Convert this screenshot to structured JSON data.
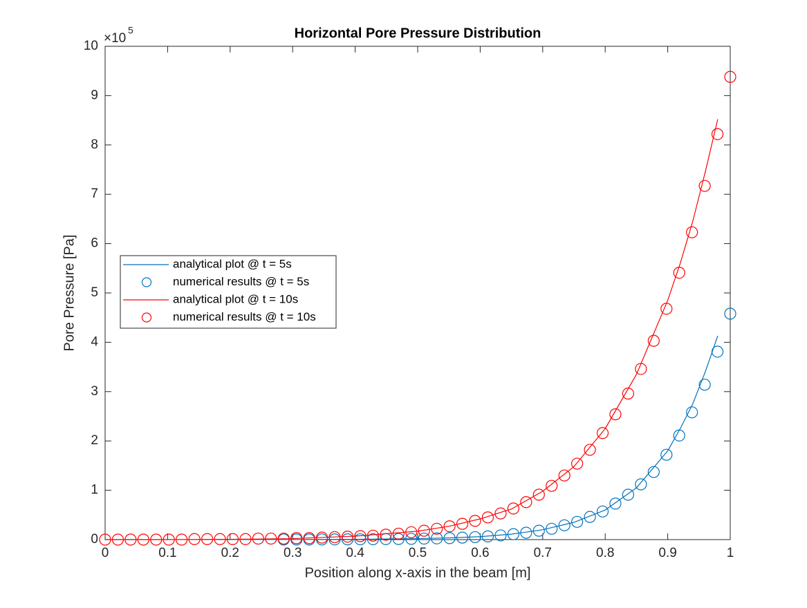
{
  "chart_data": {
    "type": "line",
    "title": "Horizontal Pore Pressure Distribution",
    "xlabel": "Position along x-axis in the beam [m]",
    "ylabel": "Pore Pressure [Pa]",
    "y_multiplier_label": "×10",
    "y_exponent": 5,
    "xlim": [
      0,
      1
    ],
    "ylim": [
      0,
      10
    ],
    "xticks": [
      0,
      0.1,
      0.2,
      0.3,
      0.4,
      0.5,
      0.6,
      0.7,
      0.8,
      0.9,
      1
    ],
    "yticks": [
      0,
      1,
      2,
      3,
      4,
      5,
      6,
      7,
      8,
      9,
      10
    ],
    "grid": false,
    "legend_location": "west",
    "series": [
      {
        "name": "analytical plot @ t = 5s",
        "color": "#0072bd",
        "style": "line",
        "x": [
          0,
          0.3,
          0.4,
          0.5,
          0.55,
          0.6,
          0.65,
          0.7,
          0.75,
          0.8,
          0.85,
          0.9,
          0.92,
          0.94,
          0.96,
          0.98
        ],
        "values": [
          0,
          0.002,
          0.005,
          0.02,
          0.035,
          0.06,
          0.11,
          0.2,
          0.35,
          0.6,
          1.05,
          1.8,
          2.25,
          2.75,
          3.4,
          4.13
        ]
      },
      {
        "name": "numerical results @ t = 5s",
        "color": "#0072bd",
        "style": "marker",
        "x": [
          0.2857,
          0.3061,
          0.3265,
          0.3469,
          0.3673,
          0.3878,
          0.4082,
          0.4286,
          0.449,
          0.4694,
          0.4898,
          0.5102,
          0.5306,
          0.551,
          0.5714,
          0.5918,
          0.6122,
          0.6327,
          0.6531,
          0.6735,
          0.6939,
          0.7143,
          0.7347,
          0.7551,
          0.7755,
          0.7959,
          0.8163,
          0.8367,
          0.8571,
          0.8776,
          0.898,
          0.9184,
          0.9388,
          0.9592,
          0.9796,
          1
        ],
        "values": [
          0.001,
          0.002,
          0.002,
          0.003,
          0.004,
          0.005,
          0.006,
          0.008,
          0.01,
          0.012,
          0.015,
          0.02,
          0.025,
          0.03,
          0.04,
          0.05,
          0.065,
          0.085,
          0.11,
          0.14,
          0.18,
          0.22,
          0.29,
          0.36,
          0.46,
          0.57,
          0.73,
          0.91,
          1.12,
          1.37,
          1.72,
          2.11,
          2.58,
          3.14,
          3.81,
          4.58
        ]
      },
      {
        "name": "analytical plot @ t = 10s",
        "color": "#ff0000",
        "style": "line",
        "x": [
          0,
          0.1,
          0.2,
          0.3,
          0.4,
          0.5,
          0.55,
          0.6,
          0.65,
          0.7,
          0.75,
          0.8,
          0.85,
          0.9,
          0.92,
          0.94,
          0.96,
          0.98
        ],
        "values": [
          0,
          0,
          0.005,
          0.02,
          0.07,
          0.17,
          0.27,
          0.42,
          0.62,
          0.98,
          1.48,
          2.25,
          3.35,
          4.85,
          5.6,
          6.45,
          7.45,
          8.52
        ]
      },
      {
        "name": "numerical results @ t = 10s",
        "color": "#ff0000",
        "style": "marker",
        "x": [
          0,
          0.0204,
          0.0408,
          0.0612,
          0.0816,
          0.102,
          0.1224,
          0.1429,
          0.1633,
          0.1837,
          0.2041,
          0.2245,
          0.2449,
          0.2653,
          0.2857,
          0.3061,
          0.3265,
          0.3469,
          0.3673,
          0.3878,
          0.4082,
          0.4286,
          0.449,
          0.4694,
          0.4898,
          0.5102,
          0.5306,
          0.551,
          0.5714,
          0.5918,
          0.6122,
          0.6327,
          0.6531,
          0.6735,
          0.6939,
          0.7143,
          0.7347,
          0.7551,
          0.7755,
          0.7959,
          0.8163,
          0.8367,
          0.8571,
          0.8776,
          0.898,
          0.9184,
          0.9388,
          0.9592,
          0.9796,
          1
        ],
        "values": [
          0,
          0,
          0,
          0,
          0,
          0,
          0,
          0.01,
          0.01,
          0.01,
          0.01,
          0.01,
          0.02,
          0.02,
          0.02,
          0.03,
          0.03,
          0.04,
          0.05,
          0.06,
          0.07,
          0.08,
          0.1,
          0.12,
          0.15,
          0.18,
          0.22,
          0.27,
          0.32,
          0.38,
          0.45,
          0.53,
          0.63,
          0.76,
          0.91,
          1.09,
          1.3,
          1.54,
          1.82,
          2.16,
          2.54,
          2.96,
          3.46,
          4.03,
          4.68,
          5.41,
          6.23,
          7.17,
          8.22,
          9.38
        ]
      }
    ]
  }
}
